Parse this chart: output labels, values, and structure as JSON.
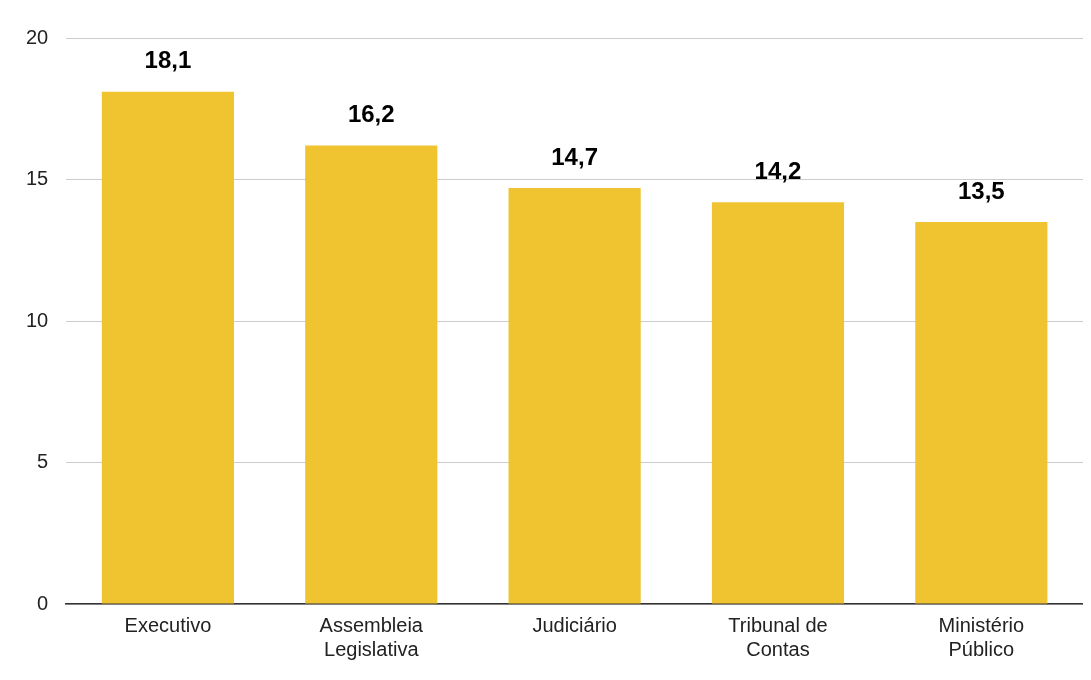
{
  "chart_data": {
    "type": "bar",
    "categories": [
      "Executivo",
      "Assembleia Legislativa",
      "Judiciário",
      "Tribunal de Contas",
      "Ministério Público"
    ],
    "values": [
      18.1,
      16.2,
      14.7,
      14.2,
      13.5
    ],
    "value_labels": [
      "18,1",
      "16,2",
      "14,7",
      "14,2",
      "13,5"
    ],
    "color": "#f0c330",
    "ylim": [
      0,
      20
    ],
    "yticks": [
      0,
      5,
      10,
      15,
      20
    ],
    "grid": "y",
    "legend": false
  }
}
